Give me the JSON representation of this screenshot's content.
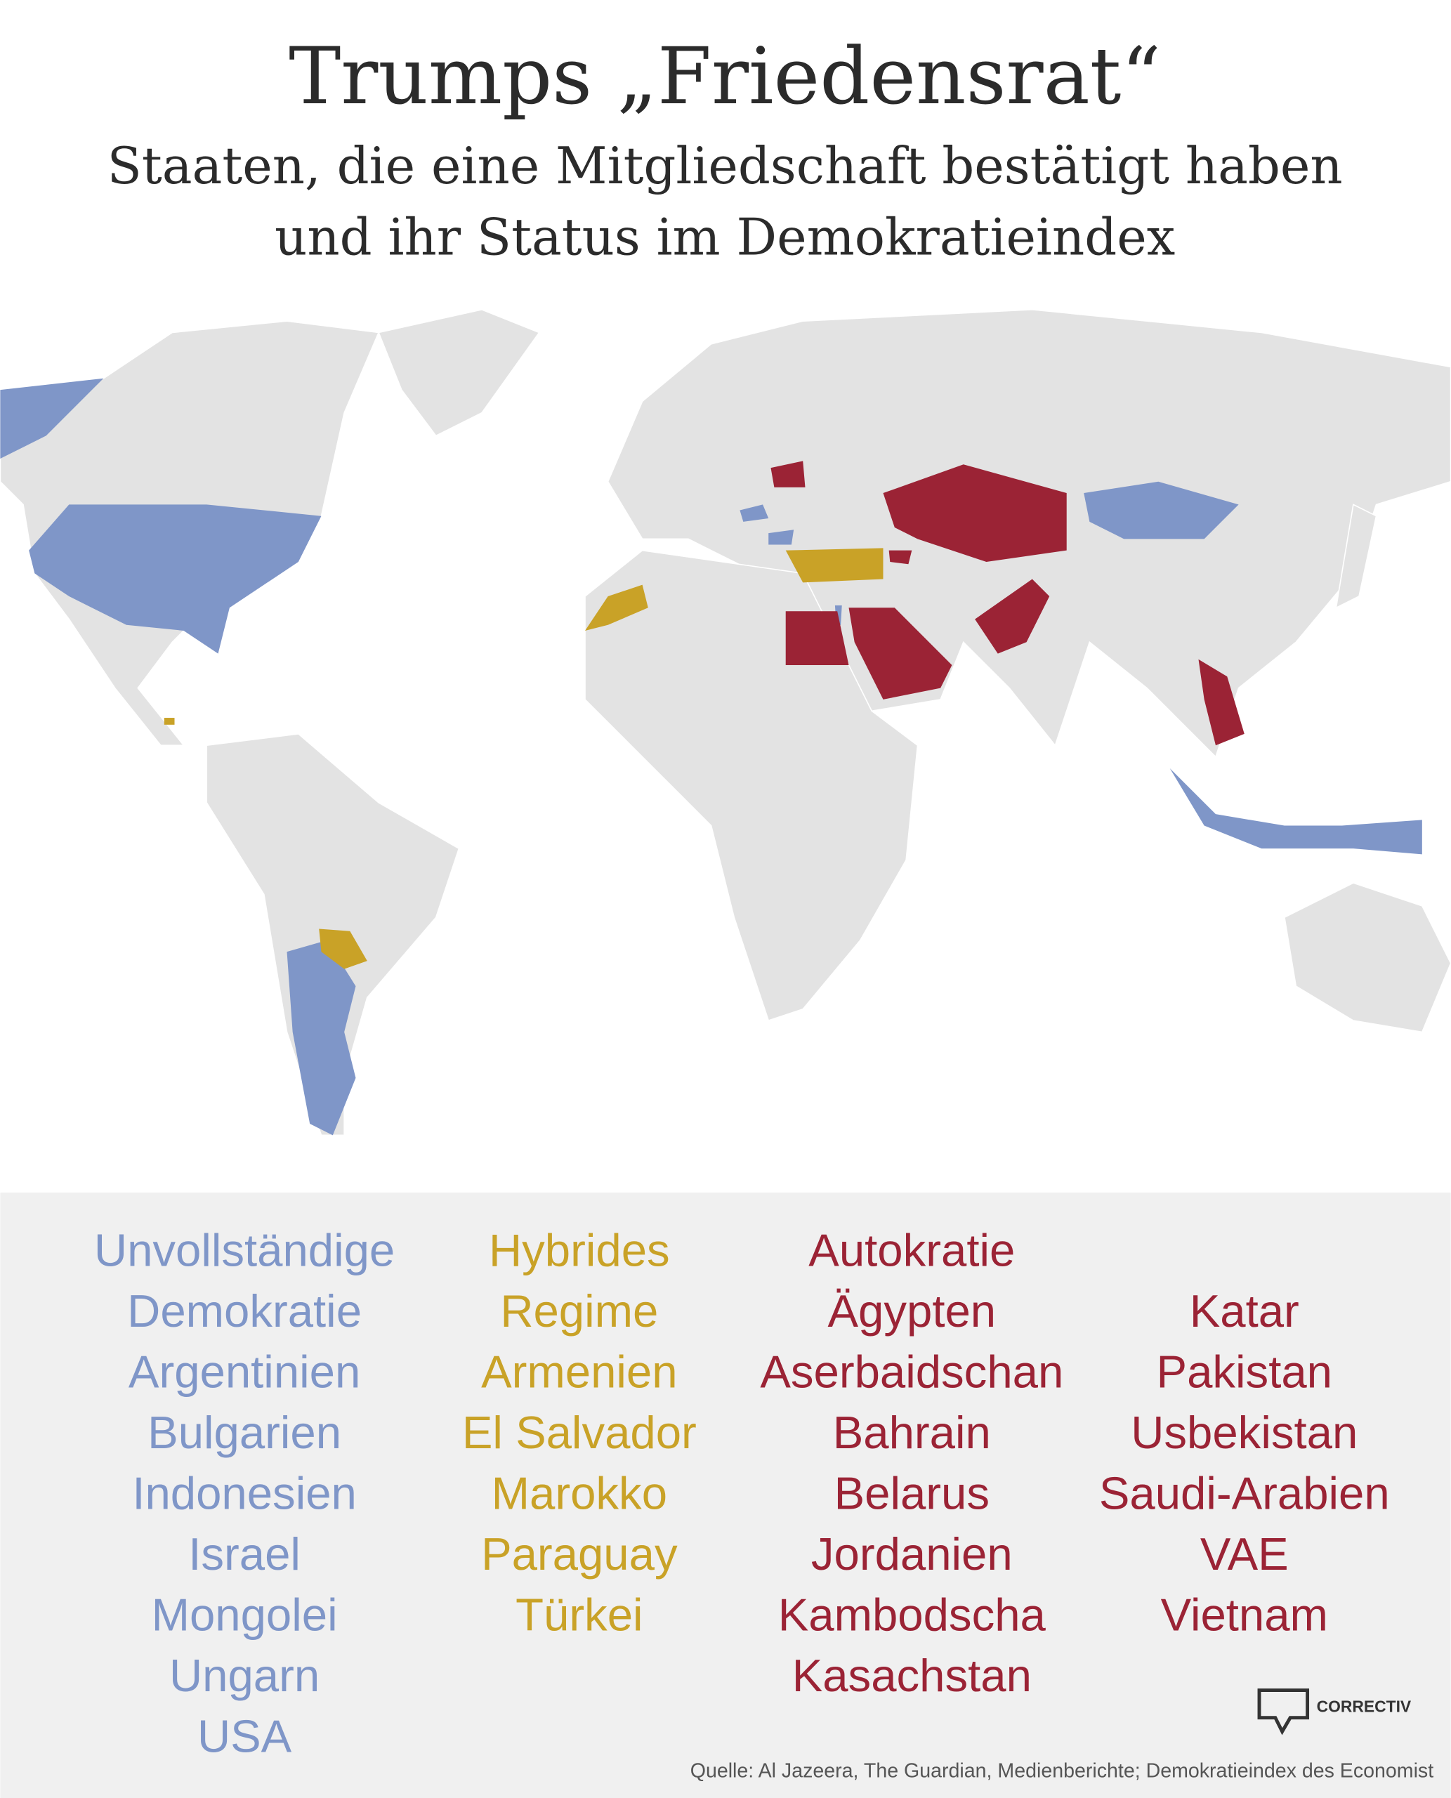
{
  "title": "Trumps „Friedensrat“",
  "subtitle": [
    "Staaten, die eine Mitgliedschaft bestätigt haben",
    "und ihr Status im Demokratieindex"
  ],
  "legend": [
    {
      "heading": [
        "Unvollständige",
        "Demokratie"
      ],
      "color": "#7f96c8",
      "countries": [
        "Argentinien",
        "Bulgarien",
        "Indonesien",
        "Israel",
        "Mongolei",
        "Ungarn",
        "USA"
      ]
    },
    {
      "heading": [
        "Hybrides",
        "Regime"
      ],
      "color": "#c9a227",
      "countries": [
        "Armenien",
        "El Salvador",
        "Marokko",
        "Paraguay",
        "Türkei"
      ]
    },
    {
      "heading": [
        "Autokratie"
      ],
      "color": "#9b2335",
      "countries": [
        "Ägypten",
        "Aserbaidschan",
        "Bahrain",
        "Belarus",
        "Jordanien",
        "Kambodscha",
        "Kasachstan",
        "Katar",
        "Pakistan",
        "Usbekistan",
        "Saudi-Arabien",
        "VAE",
        "Vietnam"
      ]
    }
  ],
  "source": "Quelle: Al Jazeera, The Guardian, Medienberichte; Demokratieindex des Economist",
  "logo": "CORRECTIV"
}
